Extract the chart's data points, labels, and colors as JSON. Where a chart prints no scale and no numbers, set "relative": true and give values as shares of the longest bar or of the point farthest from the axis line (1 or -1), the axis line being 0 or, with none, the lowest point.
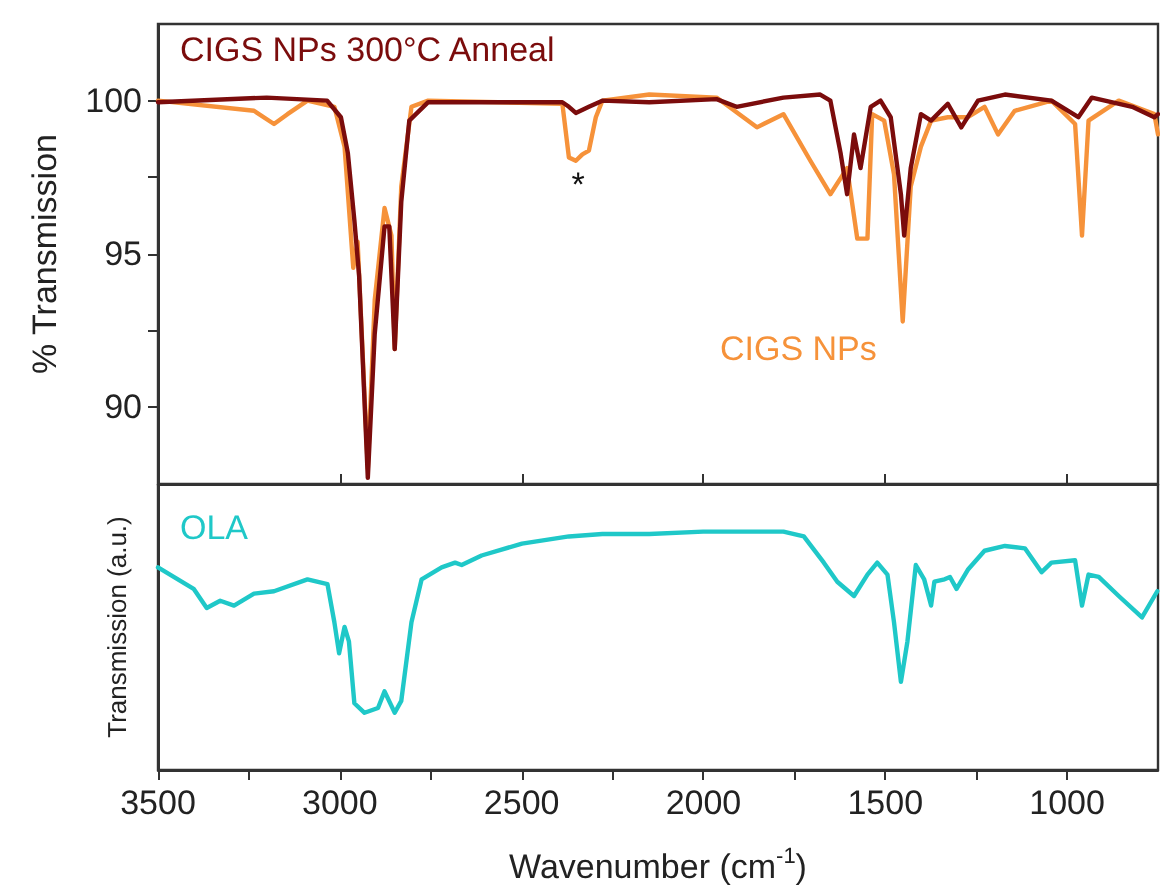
{
  "chart_data": [
    {
      "type": "line",
      "ylabel": "% Transmission",
      "xlim": [
        3500,
        750
      ],
      "ylim": [
        87.5,
        102.5
      ],
      "xticks": [
        3500,
        3000,
        2500,
        2000,
        1500,
        1000
      ],
      "yticks": [
        90,
        {
          "value": 92.5,
          "label": null
        },
        95,
        {
          "value": 97.5,
          "label": null
        },
        100
      ],
      "tick_labels": "y",
      "marker": "none",
      "annotations": [
        "*"
      ],
      "series": [
        {
          "name": "CIGS NPs",
          "color": "#f6923a",
          "x": [
            3500,
            3236,
            3181,
            3144,
            3089,
            3015,
            2987,
            2963,
            2951,
            2923,
            2904,
            2877,
            2858,
            2849,
            2831,
            2803,
            2757,
            2388,
            2370,
            2351,
            2333,
            2315,
            2296,
            2278,
            2149,
            1964,
            1853,
            1780,
            1706,
            1651,
            1605,
            1577,
            1549,
            1536,
            1503,
            1476,
            1452,
            1430,
            1402,
            1374,
            1328,
            1273,
            1227,
            1190,
            1144,
            1043,
            978,
            959,
            941,
            858,
            760,
            750
          ],
          "values": [
            100,
            99.67,
            99.24,
            99.56,
            100,
            99.8,
            98.5,
            94.55,
            95.4,
            88.0,
            93.5,
            96.5,
            95.6,
            91.9,
            97.2,
            99.8,
            100,
            99.9,
            98.15,
            98.04,
            98.25,
            98.37,
            99.46,
            100,
            100.2,
            100.1,
            99.13,
            99.56,
            98.04,
            96.95,
            97.8,
            95.5,
            95.5,
            99.56,
            99.35,
            97.6,
            92.8,
            97.2,
            98.5,
            99.35,
            99.46,
            99.46,
            99.8,
            98.9,
            99.67,
            100,
            99.24,
            95.6,
            99.35,
            100,
            99.56,
            98.9
          ]
        },
        {
          "name": "CIGS NPs 300°C Anneal",
          "color": "#7b0c0c",
          "x": [
            3500,
            3201,
            3035,
            2997,
            2978,
            2960,
            2947,
            2923,
            2904,
            2877,
            2864,
            2849,
            2831,
            2809,
            2757,
            2388,
            2370,
            2351,
            2315,
            2278,
            2149,
            1964,
            1909,
            1780,
            1679,
            1651,
            1623,
            1605,
            1586,
            1568,
            1540,
            1513,
            1485,
            1457,
            1448,
            1430,
            1402,
            1374,
            1328,
            1291,
            1245,
            1171,
            1043,
            969,
            932,
            821,
            760,
            750
          ],
          "values": [
            99.95,
            100.1,
            100,
            99.46,
            98.3,
            96.1,
            94.3,
            87.7,
            92.4,
            95.9,
            95.9,
            91.9,
            96.7,
            99.35,
            99.95,
            99.95,
            99.8,
            99.6,
            99.8,
            100,
            99.95,
            100.05,
            99.8,
            100.1,
            100.2,
            100,
            98.3,
            96.95,
            98.9,
            97.8,
            99.8,
            100,
            99.46,
            96.95,
            95.6,
            97.8,
            99.56,
            99.35,
            99.9,
            99.13,
            100,
            100.2,
            100,
            99.46,
            100.1,
            99.8,
            99.46,
            99.56
          ]
        }
      ]
    },
    {
      "type": "line",
      "relative": true,
      "xlabel": "Wavenumber (cm$^{-1}$)",
      "ylabel": "Transmission (a.u.)",
      "xlim": [
        3500,
        750
      ],
      "xticks": [
        3500,
        {
          "value": 3250,
          "label": null
        },
        3000,
        {
          "value": 2750,
          "label": null
        },
        2500,
        {
          "value": 2250,
          "label": null
        },
        2000,
        {
          "value": 1750,
          "label": null
        },
        1500,
        {
          "value": 1250,
          "label": null
        },
        1000
      ],
      "tick_labels": "x",
      "marker": "none",
      "series": [
        {
          "name": "OLA",
          "color": "#1fc8c8",
          "x": [
            3500,
            3402,
            3366,
            3329,
            3291,
            3236,
            3181,
            3089,
            3034,
            3015,
            3002,
            2987,
            2975,
            2960,
            2932,
            2895,
            2877,
            2849,
            2831,
            2803,
            2775,
            2720,
            2683,
            2665,
            2610,
            2499,
            2370,
            2278,
            2149,
            2001,
            1780,
            1724,
            1669,
            1632,
            1586,
            1549,
            1522,
            1494,
            1476,
            1457,
            1439,
            1416,
            1393,
            1374,
            1365,
            1337,
            1322,
            1304,
            1273,
            1227,
            1171,
            1116,
            1070,
            1043,
            978,
            959,
            941,
            913,
            858,
            794,
            752
          ],
          "values": [
            0.85,
            0.76,
            0.68,
            0.71,
            0.69,
            0.74,
            0.75,
            0.8,
            0.78,
            0.62,
            0.49,
            0.6,
            0.54,
            0.28,
            0.24,
            0.26,
            0.33,
            0.24,
            0.29,
            0.62,
            0.8,
            0.85,
            0.87,
            0.86,
            0.9,
            0.95,
            0.98,
            0.99,
            0.99,
            1,
            1,
            0.98,
            0.87,
            0.79,
            0.73,
            0.82,
            0.87,
            0.82,
            0.62,
            0.37,
            0.54,
            0.86,
            0.8,
            0.69,
            0.79,
            0.8,
            0.81,
            0.76,
            0.84,
            0.92,
            0.94,
            0.93,
            0.83,
            0.87,
            0.88,
            0.69,
            0.82,
            0.81,
            0.73,
            0.64,
            0.75
          ]
        }
      ]
    }
  ]
}
